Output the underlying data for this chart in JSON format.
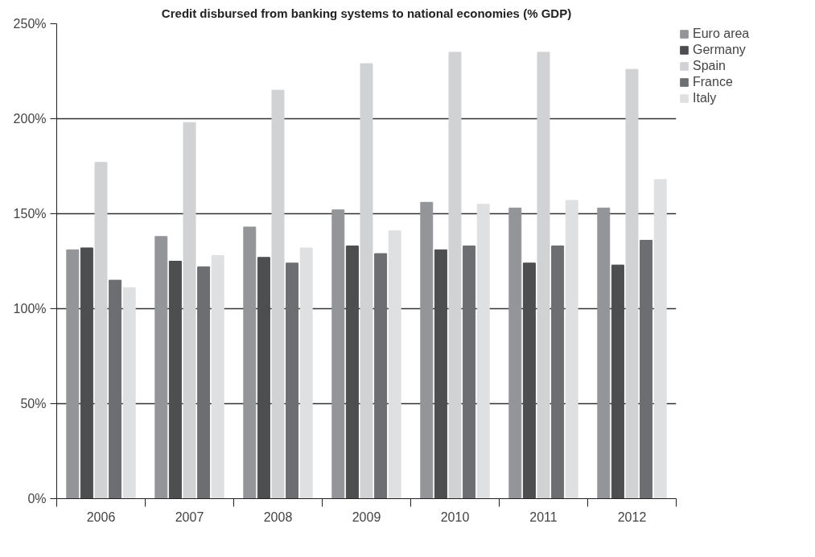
{
  "chart_data": {
    "type": "bar",
    "title": "Credit disbursed from banking systems to national economies (% GDP)",
    "categories": [
      "2006",
      "2007",
      "2008",
      "2009",
      "2010",
      "2011",
      "2012"
    ],
    "series": [
      {
        "name": "Euro area",
        "color": "#939598",
        "values": [
          131,
          138,
          143,
          152,
          156,
          153,
          153
        ]
      },
      {
        "name": "Germany",
        "color": "#4d4e50",
        "values": [
          132,
          125,
          127,
          133,
          131,
          124,
          123
        ]
      },
      {
        "name": "Spain",
        "color": "#d1d2d4",
        "values": [
          177,
          198,
          215,
          229,
          235,
          235,
          226
        ]
      },
      {
        "name": "France",
        "color": "#6d6e71",
        "values": [
          115,
          122,
          124,
          129,
          133,
          133,
          136
        ]
      },
      {
        "name": "Italy",
        "color": "#dfe0e1",
        "values": [
          111,
          128,
          132,
          141,
          155,
          157,
          168
        ]
      }
    ],
    "ylim": [
      0,
      250
    ],
    "yticks": [
      {
        "value": 0,
        "label": "0%"
      },
      {
        "value": 50,
        "label": "50%"
      },
      {
        "value": 100,
        "label": "100%"
      },
      {
        "value": 150,
        "label": "150%"
      },
      {
        "value": 200,
        "label": "200%"
      },
      {
        "value": 250,
        "label": "250%"
      }
    ],
    "grid": "y",
    "legend": "top right"
  }
}
